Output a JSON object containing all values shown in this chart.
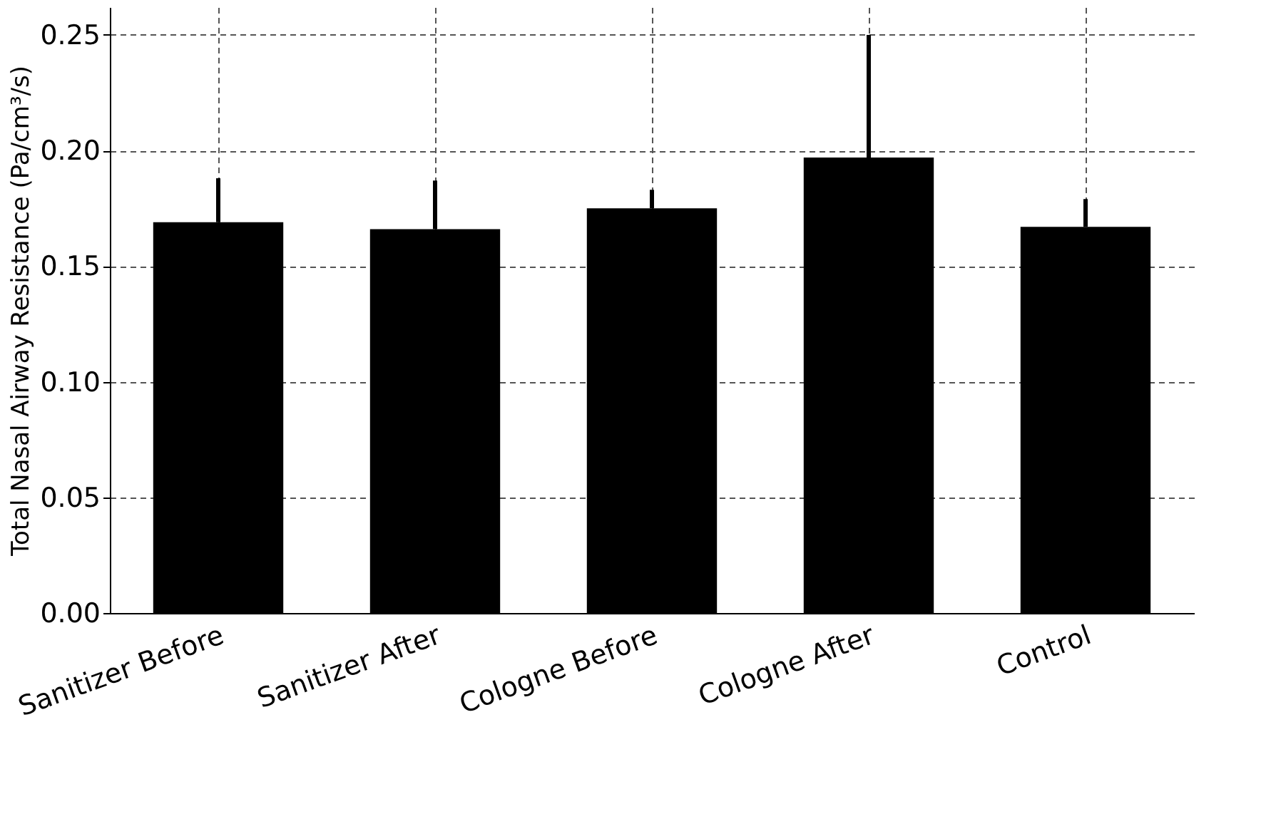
{
  "chart_data": {
    "type": "bar",
    "ylabel": "Total Nasal Airway Resistance (Pa/cm³/s)",
    "categories": [
      "Sanitizer Before",
      "Sanitizer After",
      "Cologne Before",
      "Cologne After",
      "Control"
    ],
    "values": [
      0.169,
      0.166,
      0.175,
      0.197,
      0.167
    ],
    "errors": [
      [
        0.169,
        0.188
      ],
      [
        0.166,
        0.187
      ],
      [
        0.175,
        0.183
      ],
      [
        0.197,
        0.25
      ],
      [
        0.167,
        0.179
      ]
    ],
    "color": "#000000",
    "ylim": [
      0,
      0.262
    ],
    "yticks": [
      {
        "value": 0,
        "label": "0.00"
      },
      {
        "value": 0.05,
        "label": "0.05"
      },
      {
        "value": 0.1,
        "label": "0.10"
      },
      {
        "value": 0.15,
        "label": "0.15"
      },
      {
        "value": 0.2,
        "label": "0.20"
      },
      {
        "value": 0.25,
        "label": "0.25"
      }
    ],
    "grid": true
  }
}
